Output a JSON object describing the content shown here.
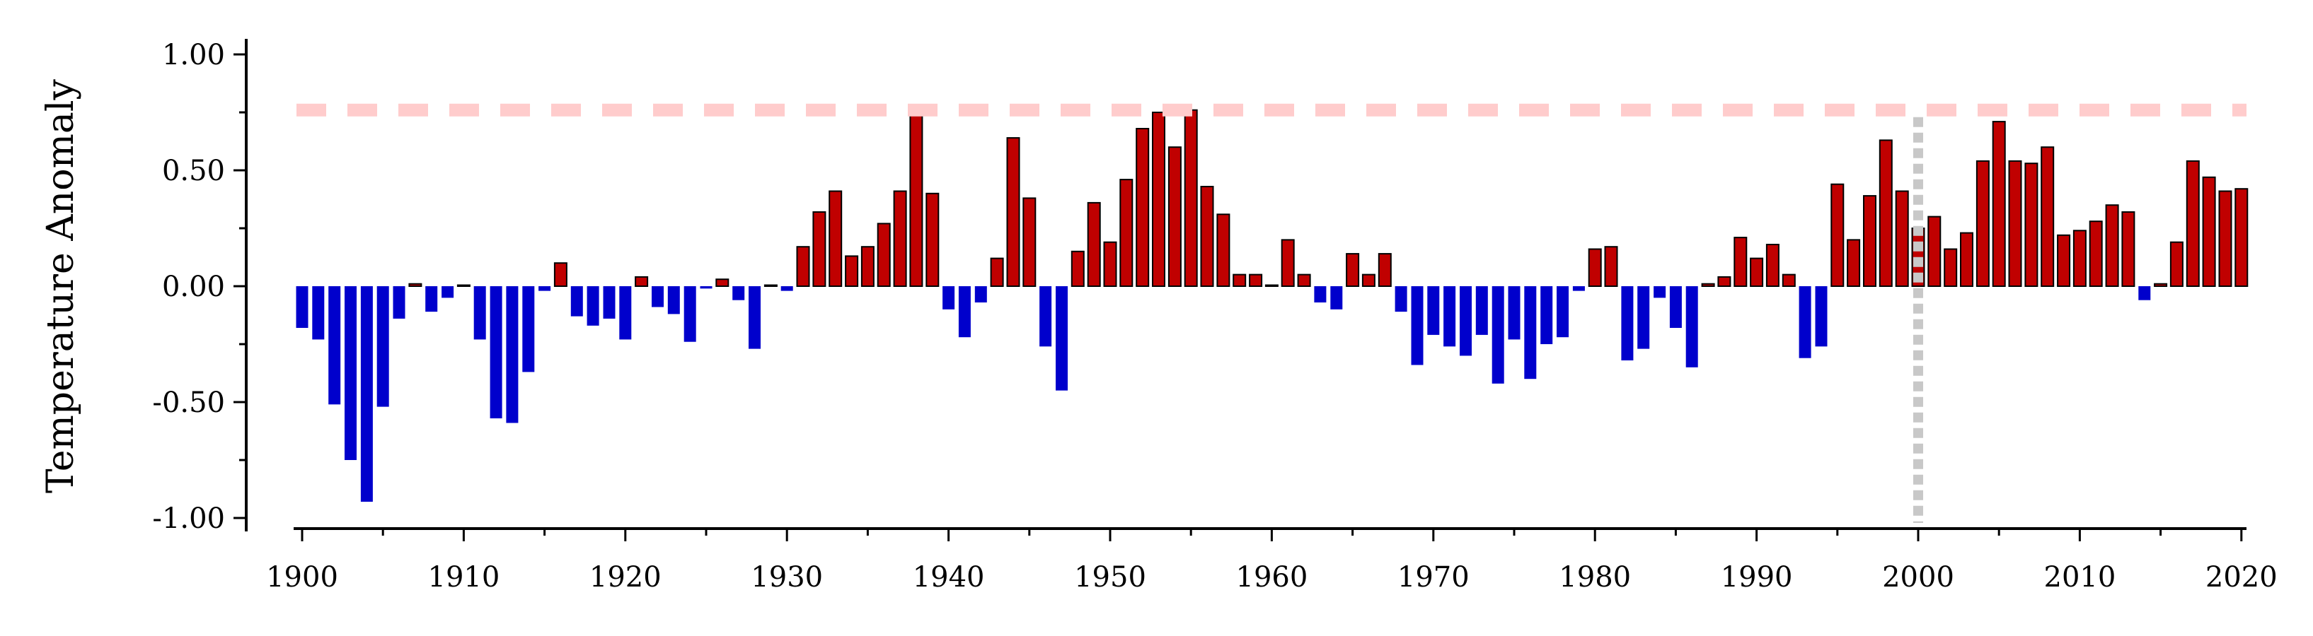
{
  "chart_data": {
    "type": "bar",
    "title": "",
    "xlabel": "",
    "ylabel": "Temperature Anomaly",
    "xlim": [
      1899.5,
      2020.5
    ],
    "ylim": [
      -1.05,
      1.05
    ],
    "x_ticks": [
      1900,
      1910,
      1920,
      1930,
      1940,
      1950,
      1960,
      1970,
      1980,
      1990,
      2000,
      2010,
      2020
    ],
    "x_tick_labels": [
      "1900",
      "1910",
      "1920",
      "1930",
      "1940",
      "1950",
      "1960",
      "1970",
      "1980",
      "1990",
      "2000",
      "2010",
      "2020"
    ],
    "y_ticks": [
      1.0,
      0.5,
      0.0,
      -0.5,
      -1.0
    ],
    "y_tick_labels": [
      "1.00",
      "0.50",
      "0.00",
      "-0.50",
      "-1.00"
    ],
    "y_minor_ticks": [
      0.75,
      0.25,
      -0.25,
      -0.75
    ],
    "grid": false,
    "colors": {
      "positive": "#c00000",
      "negative": "#0000cc",
      "reference_line": "#ffcccc",
      "vertical_marker": "#c8c8c8"
    },
    "reference_line_y": 0.76,
    "vertical_marker_x": 2000,
    "years": [
      1900,
      1901,
      1902,
      1903,
      1904,
      1905,
      1906,
      1907,
      1908,
      1909,
      1910,
      1911,
      1912,
      1913,
      1914,
      1915,
      1916,
      1917,
      1918,
      1919,
      1920,
      1921,
      1922,
      1923,
      1924,
      1925,
      1926,
      1927,
      1928,
      1929,
      1930,
      1931,
      1932,
      1933,
      1934,
      1935,
      1936,
      1937,
      1938,
      1939,
      1940,
      1941,
      1942,
      1943,
      1944,
      1945,
      1946,
      1947,
      1948,
      1949,
      1950,
      1951,
      1952,
      1953,
      1954,
      1955,
      1956,
      1957,
      1958,
      1959,
      1960,
      1961,
      1962,
      1963,
      1964,
      1965,
      1966,
      1967,
      1968,
      1969,
      1970,
      1971,
      1972,
      1973,
      1974,
      1975,
      1976,
      1977,
      1978,
      1979,
      1980,
      1981,
      1982,
      1983,
      1984,
      1985,
      1986,
      1987,
      1988,
      1989,
      1990,
      1991,
      1992,
      1993,
      1994,
      1995,
      1996,
      1997,
      1998,
      1999,
      2000,
      2001,
      2002,
      2003,
      2004,
      2005,
      2006,
      2007,
      2008,
      2009,
      2010,
      2011,
      2012,
      2013,
      2014,
      2015,
      2016,
      2017,
      2018,
      2019,
      2020
    ],
    "values": [
      -0.18,
      -0.23,
      -0.51,
      -0.75,
      -0.93,
      -0.52,
      -0.14,
      0.01,
      -0.11,
      -0.05,
      0.0,
      -0.23,
      -0.57,
      -0.59,
      -0.37,
      -0.02,
      0.1,
      -0.13,
      -0.17,
      -0.14,
      -0.23,
      0.04,
      -0.09,
      -0.12,
      -0.24,
      -0.01,
      0.03,
      -0.06,
      -0.27,
      0.0,
      -0.02,
      0.17,
      0.32,
      0.41,
      0.13,
      0.17,
      0.27,
      0.41,
      0.76,
      0.4,
      -0.1,
      -0.22,
      -0.07,
      0.12,
      0.64,
      0.38,
      -0.26,
      -0.45,
      0.15,
      0.36,
      0.19,
      0.46,
      0.68,
      0.75,
      0.6,
      0.76,
      0.43,
      0.31,
      0.05,
      0.05,
      0.0,
      0.2,
      0.05,
      -0.07,
      -0.1,
      0.14,
      0.05,
      0.14,
      -0.11,
      -0.34,
      -0.21,
      -0.26,
      -0.3,
      -0.21,
      -0.42,
      -0.23,
      -0.4,
      -0.25,
      -0.22,
      -0.02,
      0.16,
      0.17,
      -0.32,
      -0.27,
      -0.05,
      -0.18,
      -0.35,
      0.01,
      0.04,
      0.21,
      0.12,
      0.18,
      0.05,
      -0.31,
      -0.26,
      0.44,
      0.2,
      0.39,
      0.63,
      0.41,
      0.25,
      0.3,
      0.16,
      0.23,
      0.54,
      0.71,
      0.54,
      0.53,
      0.6,
      0.22,
      0.24,
      0.28,
      0.35,
      0.32,
      -0.06,
      0.01,
      0.19,
      0.54,
      0.47,
      0.41,
      0.42
    ]
  }
}
